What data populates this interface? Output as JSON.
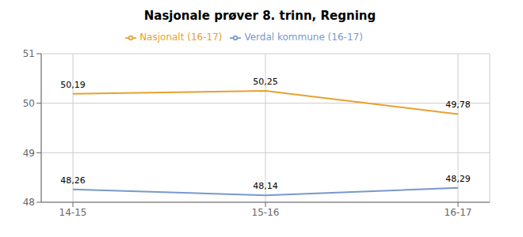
{
  "chart_data": {
    "type": "line",
    "title": "Nasjonale prøver 8. trinn, Regning",
    "categories": [
      "14-15",
      "15-16",
      "16-17"
    ],
    "series": [
      {
        "name": "Verdal kommune (16-17)",
        "color": "#7799CC",
        "values": [
          48.26,
          48.14,
          48.29
        ],
        "value_labels": [
          "48,26",
          "48,14",
          "48,29"
        ]
      },
      {
        "name": "Nasjonalt (16-17)",
        "color": "#E8A030",
        "values": [
          50.19,
          50.25,
          49.78
        ],
        "value_labels": [
          "50,19",
          "50,25",
          "49,78"
        ]
      }
    ],
    "ylim": [
      48,
      51
    ],
    "yticks": [
      48,
      49,
      50,
      51
    ],
    "grid": true,
    "legend": "top",
    "data_labels": true
  }
}
